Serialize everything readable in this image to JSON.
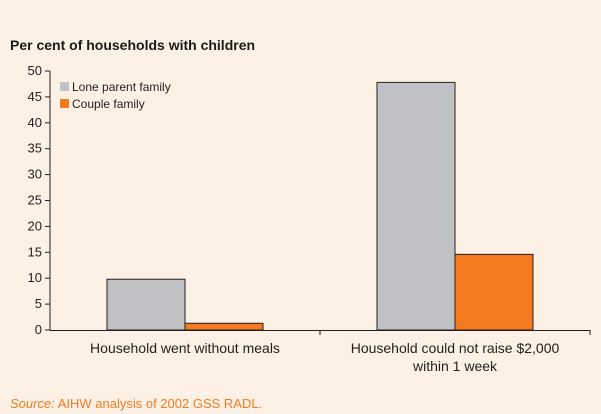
{
  "chart_data": {
    "type": "bar",
    "title": "Per cent of households with children",
    "categories": [
      [
        "Household went without meals"
      ],
      [
        "Household could not raise $2,000",
        "within 1 week"
      ]
    ],
    "series": [
      {
        "name": "Lone parent family",
        "color": "#c0c1c4",
        "values": [
          9.8,
          47.8
        ]
      },
      {
        "name": "Couple family",
        "color": "#f47b20",
        "values": [
          1.3,
          14.6
        ]
      }
    ],
    "y_ticks": [
      "0",
      "5",
      "10",
      "15",
      "20",
      "25",
      "30",
      "35",
      "40",
      "45",
      "50"
    ],
    "ylim": [
      0,
      50
    ],
    "grid": false,
    "legend_position": "top-left"
  },
  "source": {
    "prefix": "Source:",
    "text": "AIHW analysis of 2002 GSS RADL."
  }
}
